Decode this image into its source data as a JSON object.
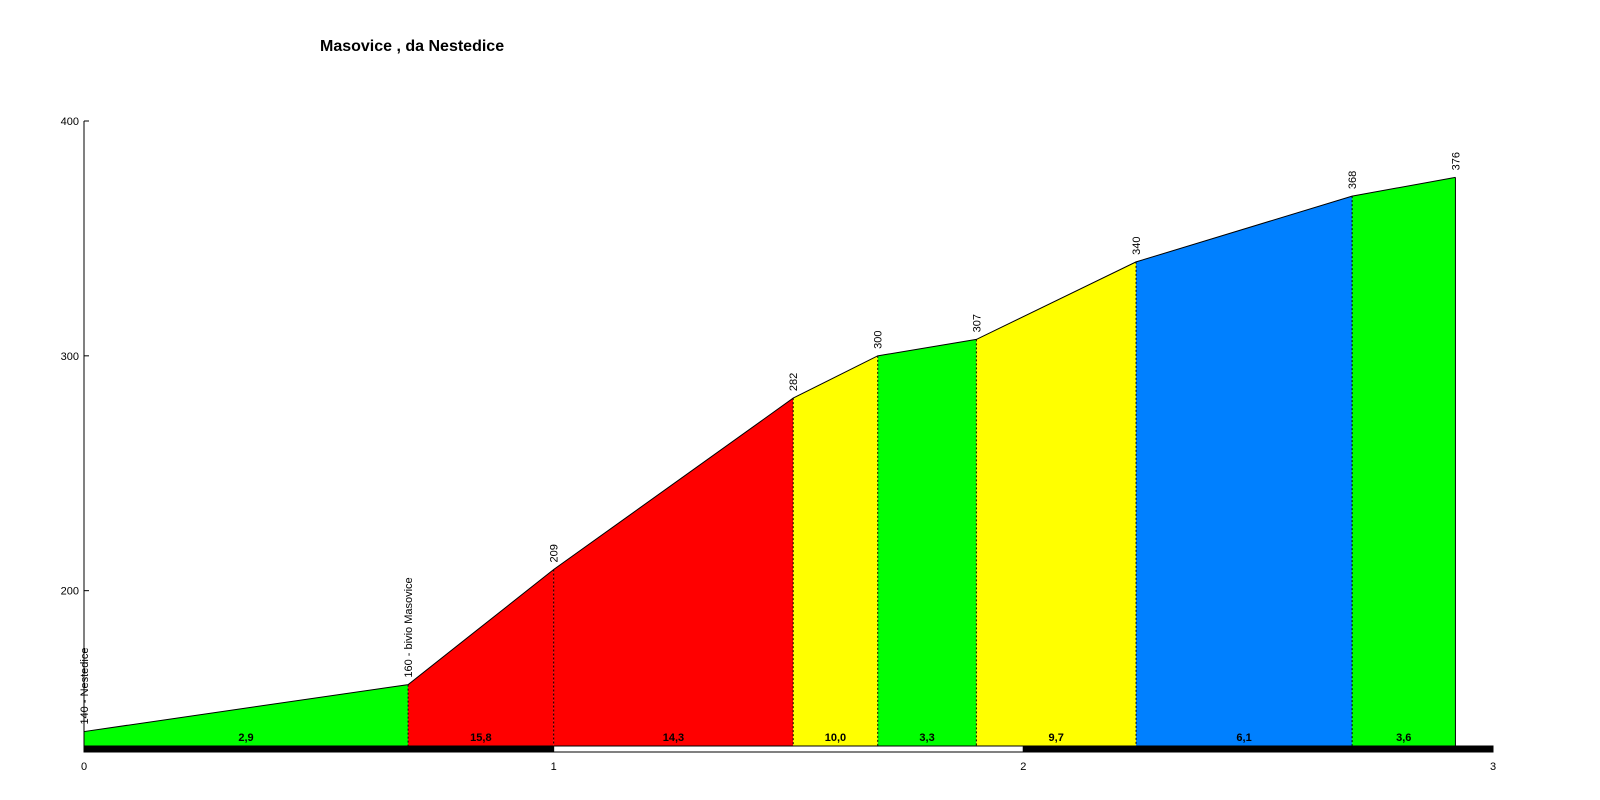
{
  "chart_data": {
    "type": "area",
    "title": "Masovice , da Nestedice",
    "xlabel": "",
    "ylabel": "",
    "xlim": [
      0,
      3
    ],
    "ylim": [
      133,
      400
    ],
    "x_ticks": [
      0,
      1,
      2,
      3
    ],
    "y_ticks": [
      200,
      300,
      400
    ],
    "grid": false,
    "legend": "none",
    "points": [
      {
        "x": 0.0,
        "y": 140,
        "label": "140 - Nestedice"
      },
      {
        "x": 0.69,
        "y": 160,
        "label": "160 - bivio Masovice"
      },
      {
        "x": 1.0,
        "y": 209,
        "label": "209"
      },
      {
        "x": 1.51,
        "y": 282,
        "label": "282"
      },
      {
        "x": 1.69,
        "y": 300,
        "label": "300"
      },
      {
        "x": 1.9,
        "y": 307,
        "label": "307"
      },
      {
        "x": 2.24,
        "y": 340,
        "label": "340"
      },
      {
        "x": 2.7,
        "y": 368,
        "label": "368"
      },
      {
        "x": 2.92,
        "y": 376,
        "label": "376"
      }
    ],
    "segments": [
      {
        "gradient": "2,9",
        "color": "#00ff00"
      },
      {
        "gradient": "15,8",
        "color": "#ff0000"
      },
      {
        "gradient": "14,3",
        "color": "#ff0000"
      },
      {
        "gradient": "10,0",
        "color": "#ffff00"
      },
      {
        "gradient": "3,3",
        "color": "#00ff00"
      },
      {
        "gradient": "9,7",
        "color": "#ffff00"
      },
      {
        "gradient": "6,1",
        "color": "#0080ff"
      },
      {
        "gradient": "3,6",
        "color": "#00ff00"
      }
    ]
  }
}
